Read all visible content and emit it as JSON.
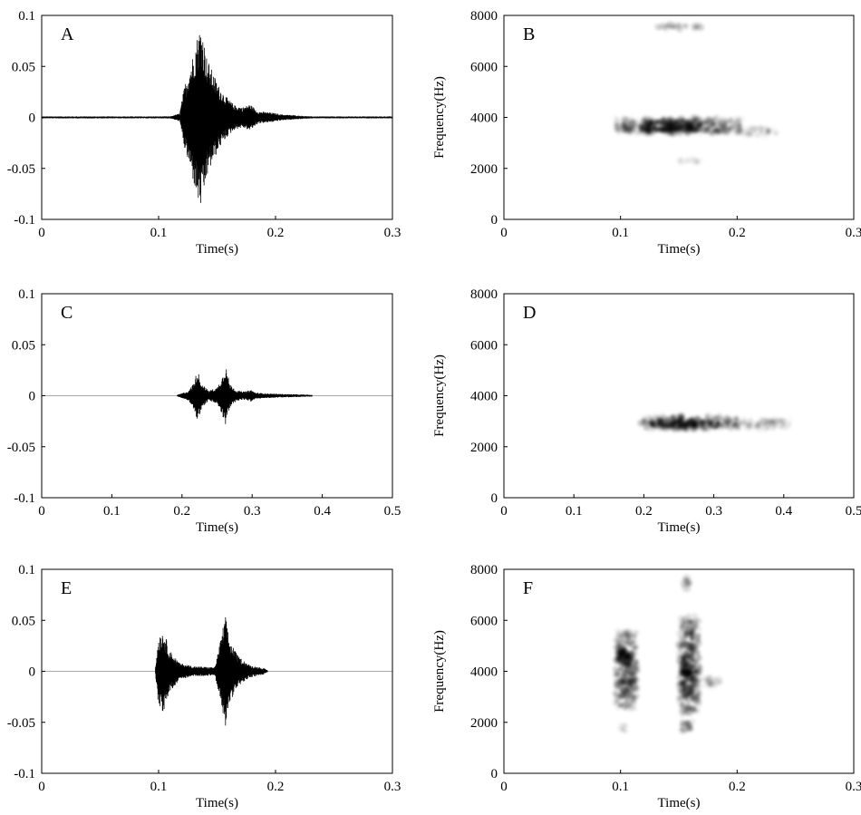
{
  "chart_data": [
    {
      "panel": "A",
      "type": "waveform",
      "xlabel": "Time(s)",
      "ylabel": "",
      "xlim": [
        0,
        0.3
      ],
      "ylim": [
        -0.1,
        0.1
      ],
      "xticks": [
        "0",
        "0.1",
        "0.2",
        "0.3"
      ],
      "yticks": [
        "0.1",
        "0.05",
        "0",
        "-0.05",
        "-0.1"
      ],
      "envelope": [
        [
          0.0,
          0.001
        ],
        [
          0.11,
          0.001
        ],
        [
          0.118,
          0.004
        ],
        [
          0.122,
          0.03
        ],
        [
          0.128,
          0.055
        ],
        [
          0.134,
          0.085
        ],
        [
          0.137,
          0.09
        ],
        [
          0.141,
          0.06
        ],
        [
          0.146,
          0.045
        ],
        [
          0.152,
          0.03
        ],
        [
          0.158,
          0.02
        ],
        [
          0.165,
          0.012
        ],
        [
          0.172,
          0.01
        ],
        [
          0.178,
          0.013
        ],
        [
          0.185,
          0.006
        ],
        [
          0.195,
          0.005
        ],
        [
          0.205,
          0.003
        ],
        [
          0.23,
          0.001
        ],
        [
          0.3,
          0.001
        ]
      ]
    },
    {
      "panel": "B",
      "type": "heatmap",
      "xlabel": "Time(s)",
      "ylabel": "Frequency(Hz)",
      "xlim": [
        0,
        0.3
      ],
      "ylim": [
        0,
        8000
      ],
      "xticks": [
        "0",
        "0.1",
        "0.2",
        "0.3"
      ],
      "yticks": [
        "8000",
        "6000",
        "4000",
        "2000",
        "0"
      ],
      "regions": [
        {
          "t": [
            0.095,
            0.205
          ],
          "f": [
            3350,
            4000
          ],
          "intensity": 0.5
        },
        {
          "t": [
            0.115,
            0.17
          ],
          "f": [
            3450,
            3900
          ],
          "intensity": 0.85
        },
        {
          "t": [
            0.2,
            0.235
          ],
          "f": [
            3300,
            3600
          ],
          "intensity": 0.2
        },
        {
          "t": [
            0.13,
            0.17
          ],
          "f": [
            7450,
            7650
          ],
          "intensity": 0.3
        },
        {
          "t": [
            0.15,
            0.17
          ],
          "f": [
            2200,
            2350
          ],
          "intensity": 0.15
        }
      ]
    },
    {
      "panel": "C",
      "type": "waveform",
      "xlabel": "Time(s)",
      "ylabel": "",
      "xlim": [
        0,
        0.5
      ],
      "ylim": [
        -0.1,
        0.1
      ],
      "xticks": [
        "0",
        "0.1",
        "0.2",
        "0.3",
        "0.4",
        "0.5"
      ],
      "yticks": [
        "0.1",
        "0.05",
        "0",
        "-0.05",
        "-0.1"
      ],
      "envelope": [
        [
          0.0,
          0.0
        ],
        [
          0.19,
          0.0
        ],
        [
          0.198,
          0.002
        ],
        [
          0.21,
          0.005
        ],
        [
          0.218,
          0.015
        ],
        [
          0.222,
          0.026
        ],
        [
          0.228,
          0.012
        ],
        [
          0.238,
          0.005
        ],
        [
          0.25,
          0.008
        ],
        [
          0.258,
          0.02
        ],
        [
          0.262,
          0.031
        ],
        [
          0.268,
          0.012
        ],
        [
          0.278,
          0.005
        ],
        [
          0.29,
          0.004
        ],
        [
          0.298,
          0.006
        ],
        [
          0.305,
          0.003
        ],
        [
          0.33,
          0.002
        ],
        [
          0.38,
          0.001
        ],
        [
          0.41,
          0.0
        ],
        [
          0.5,
          0.0
        ]
      ]
    },
    {
      "panel": "D",
      "type": "heatmap",
      "xlabel": "Time(s)",
      "ylabel": "Frequency(Hz)",
      "xlim": [
        0,
        0.5
      ],
      "ylim": [
        0,
        8000
      ],
      "xticks": [
        "0",
        "0.1",
        "0.2",
        "0.3",
        "0.4",
        "0.5"
      ],
      "yticks": [
        "8000",
        "6000",
        "4000",
        "2000",
        "0"
      ],
      "regions": [
        {
          "t": [
            0.195,
            0.34
          ],
          "f": [
            2650,
            3200
          ],
          "intensity": 0.55
        },
        {
          "t": [
            0.21,
            0.28
          ],
          "f": [
            2750,
            3050
          ],
          "intensity": 0.85
        },
        {
          "t": [
            0.34,
            0.41
          ],
          "f": [
            2700,
            3100
          ],
          "intensity": 0.22
        }
      ]
    },
    {
      "panel": "E",
      "type": "waveform",
      "xlabel": "Time(s)",
      "ylabel": "",
      "xlim": [
        0,
        0.3
      ],
      "ylim": [
        -0.1,
        0.1
      ],
      "xticks": [
        "0",
        "0.1",
        "0.2",
        "0.3"
      ],
      "yticks": [
        "0.1",
        "0.05",
        "0",
        "-0.05",
        "-0.1"
      ],
      "envelope": [
        [
          0.0,
          0.0005
        ],
        [
          0.097,
          0.0005
        ],
        [
          0.1,
          0.035
        ],
        [
          0.104,
          0.04
        ],
        [
          0.11,
          0.02
        ],
        [
          0.118,
          0.008
        ],
        [
          0.13,
          0.005
        ],
        [
          0.148,
          0.004
        ],
        [
          0.152,
          0.025
        ],
        [
          0.157,
          0.055
        ],
        [
          0.161,
          0.03
        ],
        [
          0.168,
          0.015
        ],
        [
          0.178,
          0.006
        ],
        [
          0.19,
          0.003
        ],
        [
          0.194,
          0.0005
        ],
        [
          0.3,
          0.0005
        ]
      ]
    },
    {
      "panel": "F",
      "type": "heatmap",
      "xlabel": "Time(s)",
      "ylabel": "Frequency(Hz)",
      "xlim": [
        0,
        0.3
      ],
      "ylim": [
        0,
        8000
      ],
      "xticks": [
        "0",
        "0.1",
        "0.2",
        "0.3"
      ],
      "yticks": [
        "8000",
        "6000",
        "4000",
        "2000",
        "0"
      ],
      "regions": [
        {
          "t": [
            0.095,
            0.115
          ],
          "f": [
            2500,
            5600
          ],
          "intensity": 0.55
        },
        {
          "t": [
            0.098,
            0.108
          ],
          "f": [
            4200,
            4800
          ],
          "intensity": 0.9
        },
        {
          "t": [
            0.15,
            0.168
          ],
          "f": [
            2300,
            6200
          ],
          "intensity": 0.55
        },
        {
          "t": [
            0.152,
            0.162
          ],
          "f": [
            3500,
            4300
          ],
          "intensity": 0.85
        },
        {
          "t": [
            0.153,
            0.16
          ],
          "f": [
            7200,
            7700
          ],
          "intensity": 0.45
        },
        {
          "t": [
            0.152,
            0.162
          ],
          "f": [
            1600,
            2100
          ],
          "intensity": 0.45
        },
        {
          "t": [
            0.1,
            0.106
          ],
          "f": [
            1600,
            1900
          ],
          "intensity": 0.3
        },
        {
          "t": [
            0.17,
            0.185
          ],
          "f": [
            3400,
            3800
          ],
          "intensity": 0.2
        }
      ]
    }
  ]
}
